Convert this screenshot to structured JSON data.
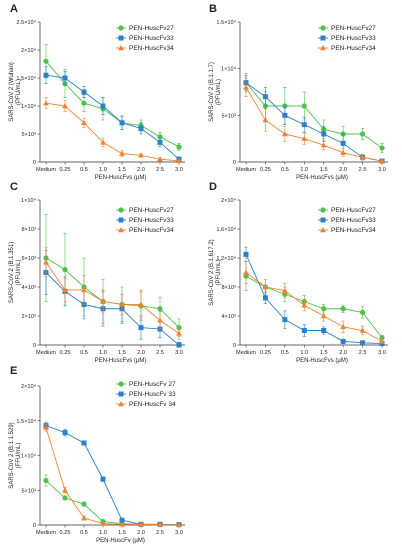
{
  "chart_data": [
    {
      "type": "line",
      "panel": "A",
      "x_categories": [
        "Medium",
        "0.25",
        "0.5",
        "1.0",
        "1.5",
        "2.0",
        "2.5",
        "3.0"
      ],
      "xlabel": "PEN-HuscFvs (µM)",
      "ylabel": "SARS-CoV 2 (Wuhan)",
      "ylabel_unit": "(PFU/mL)",
      "yscale": "linear",
      "ylim": [
        0,
        25000
      ],
      "y_ticks": [
        {
          "value": 0,
          "label": "0"
        },
        {
          "value": 5000,
          "label": "5×10³"
        },
        {
          "value": 10000,
          "label": "1×10⁴"
        },
        {
          "value": 15000,
          "label": "1.5×10⁴"
        },
        {
          "value": 20000,
          "label": "2×10⁴"
        },
        {
          "value": 25000,
          "label": "2.5×10⁴"
        }
      ],
      "legend_position": "top-right",
      "series": [
        {
          "name": "PEN-HuscFv27",
          "color": "#4cc24c",
          "marker": "circle",
          "values": [
            18000,
            14000,
            10500,
            9500,
            7000,
            6500,
            4500,
            2700
          ],
          "errors": [
            3000,
            2500,
            1500,
            2000,
            1200,
            1000,
            800,
            600
          ]
        },
        {
          "name": "PEN-HuscFv33",
          "color": "#2b80c7",
          "marker": "square",
          "values": [
            15500,
            15000,
            12500,
            10000,
            7000,
            6000,
            3500,
            500
          ],
          "errors": [
            1500,
            1200,
            1000,
            1500,
            1200,
            1000,
            800,
            400
          ]
        },
        {
          "name": "PEN-HuscFv34",
          "color": "#f08232",
          "marker": "triangle",
          "values": [
            10500,
            10000,
            7000,
            3500,
            1500,
            1200,
            500,
            200
          ],
          "errors": [
            1000,
            1000,
            800,
            700,
            500,
            300,
            200,
            100
          ]
        }
      ]
    },
    {
      "type": "line",
      "panel": "B",
      "x_categories": [
        "Medium",
        "0.25",
        "0.5",
        "1.0",
        "1.5",
        "2.0",
        "2.5",
        "3.0"
      ],
      "xlabel": "PEN-HuscFvs (µM)",
      "ylabel": "SARS-CoV 2  (B.1.1.7)",
      "ylabel_unit": "(PFU/mL)",
      "yscale": "linear",
      "ylim": [
        0,
        15000
      ],
      "y_ticks": [
        {
          "value": 0,
          "label": "0"
        },
        {
          "value": 5000,
          "label": "5×10³"
        },
        {
          "value": 10000,
          "label": "1×10⁴"
        },
        {
          "value": 15000,
          "label": "1.5×10⁴"
        }
      ],
      "legend_position": "top-right",
      "series": [
        {
          "name": "PEN-HuscFv27",
          "color": "#4cc24c",
          "marker": "circle",
          "values": [
            8500,
            6000,
            6000,
            6000,
            3500,
            3000,
            3000,
            1500
          ],
          "errors": [
            1000,
            1500,
            2000,
            1500,
            1000,
            800,
            600,
            500
          ]
        },
        {
          "name": "PEN-HuscFv33",
          "color": "#2b80c7",
          "marker": "square",
          "values": [
            8500,
            7000,
            5000,
            4000,
            3000,
            2000,
            500,
            100
          ],
          "errors": [
            800,
            1000,
            1000,
            800,
            800,
            1000,
            300,
            100
          ]
        },
        {
          "name": "PEN-HuscFv34",
          "color": "#f08232",
          "marker": "triangle",
          "values": [
            8000,
            4500,
            3000,
            2500,
            1800,
            1000,
            500,
            100
          ],
          "errors": [
            1000,
            1200,
            800,
            600,
            500,
            400,
            300,
            100
          ]
        }
      ]
    },
    {
      "type": "line",
      "panel": "C",
      "x_categories": [
        "Medium",
        "0.25",
        "0.5",
        "1.0",
        "1.5",
        "2.0",
        "2.5",
        "3.0"
      ],
      "xlabel": "PEN-HuscFvs (µM)",
      "ylabel": "SARS-CoV 2  (B.1.351)",
      "ylabel_unit": "(PFU/mL)",
      "yscale": "linear",
      "ylim": [
        0,
        10000
      ],
      "y_ticks": [
        {
          "value": 0,
          "label": "0"
        },
        {
          "value": 2000,
          "label": "2×10³"
        },
        {
          "value": 4000,
          "label": "4×10³"
        },
        {
          "value": 6000,
          "label": "6×10³"
        },
        {
          "value": 8000,
          "label": "8×10³"
        },
        {
          "value": 10000,
          "label": "1×10⁴"
        }
      ],
      "legend_position": "top-right",
      "series": [
        {
          "name": "PEN-HuscFv27",
          "color": "#4cc24c",
          "marker": "circle",
          "values": [
            6000,
            5200,
            4000,
            3000,
            2800,
            2700,
            2500,
            1200
          ],
          "errors": [
            3000,
            2500,
            2000,
            1500,
            1200,
            1000,
            800,
            600
          ]
        },
        {
          "name": "PEN-HuscFv33",
          "color": "#2b80c7",
          "marker": "square",
          "values": [
            5000,
            3700,
            2800,
            2500,
            2500,
            1200,
            1100,
            0
          ],
          "errors": [
            1500,
            1000,
            1000,
            1200,
            1000,
            800,
            600,
            200
          ]
        },
        {
          "name": "PEN-HuscFv34",
          "color": "#f08232",
          "marker": "triangle",
          "values": [
            5700,
            3800,
            3800,
            3000,
            2800,
            2800,
            1700,
            800
          ],
          "errors": [
            1000,
            800,
            1000,
            800,
            700,
            1000,
            600,
            400
          ]
        }
      ]
    },
    {
      "type": "line",
      "panel": "D",
      "x_categories": [
        "Medium",
        "0.25",
        "0.5",
        "1.0",
        "1.5",
        "2.0",
        "2.5",
        "3.0"
      ],
      "xlabel": "PEN-HuscFvs (µM)",
      "ylabel": "SARS-CoV 2  (B.1.617.2)",
      "ylabel_unit": "(PFU/mL)",
      "yscale": "linear",
      "ylim": [
        0,
        20000
      ],
      "y_ticks": [
        {
          "value": 0,
          "label": "0"
        },
        {
          "value": 4000,
          "label": "4×10³"
        },
        {
          "value": 8000,
          "label": "8×10³"
        },
        {
          "value": 12000,
          "label": "1.2×10⁴"
        },
        {
          "value": 16000,
          "label": "1.6×10⁴"
        },
        {
          "value": 20000,
          "label": "2×10⁴"
        }
      ],
      "legend_position": "top-right",
      "series": [
        {
          "name": "PEN-HuscFv27",
          "color": "#4cc24c",
          "marker": "circle",
          "values": [
            9500,
            8000,
            7000,
            6000,
            5000,
            5000,
            4500,
            1000
          ],
          "errors": [
            2000,
            1000,
            1000,
            800,
            600,
            500,
            800,
            300
          ]
        },
        {
          "name": "PEN-HuscFv33",
          "color": "#2b80c7",
          "marker": "square",
          "values": [
            12500,
            6500,
            3500,
            2000,
            2000,
            500,
            300,
            200
          ],
          "errors": [
            1000,
            800,
            1200,
            800,
            500,
            300,
            200,
            100
          ]
        },
        {
          "name": "PEN-HuscFv34",
          "color": "#f08232",
          "marker": "triangle",
          "values": [
            10000,
            8000,
            7500,
            5500,
            4000,
            2500,
            2000,
            500
          ],
          "errors": [
            1500,
            1000,
            1000,
            800,
            700,
            800,
            600,
            300
          ]
        }
      ]
    },
    {
      "type": "line",
      "panel": "E",
      "x_categories": [
        "Medium",
        "0.25",
        "0.5",
        "1.0",
        "1.5",
        "2.0",
        "2.5",
        "3.0"
      ],
      "xlabel": "PEN-HuscFv (µM)",
      "ylabel": "SARS-CoV 2  (B.1.1.529)",
      "ylabel_unit": "(FFU/mL)",
      "yscale": "linear",
      "ylim": [
        0,
        20000
      ],
      "y_ticks": [
        {
          "value": 0,
          "label": "0"
        },
        {
          "value": 5000,
          "label": "5×10³"
        },
        {
          "value": 10000,
          "label": "1×10⁴"
        },
        {
          "value": 15000,
          "label": "1.5×10⁴"
        },
        {
          "value": 20000,
          "label": "2×10⁴"
        }
      ],
      "legend_position": "top-right",
      "series": [
        {
          "name": "PEN-HuscFv 27",
          "color": "#4cc24c",
          "marker": "circle",
          "values": [
            6400,
            3900,
            3000,
            500,
            200,
            100,
            100,
            50
          ],
          "errors": [
            800,
            300,
            300,
            200,
            100,
            50,
            50,
            30
          ]
        },
        {
          "name": "PEN-HuscFv 33",
          "color": "#2b80c7",
          "marker": "square",
          "values": [
            14300,
            13300,
            11800,
            6600,
            700,
            100,
            100,
            50
          ],
          "errors": [
            500,
            500,
            300,
            300,
            200,
            50,
            50,
            30
          ]
        },
        {
          "name": "PEN-HuscFv 34",
          "color": "#f08232",
          "marker": "triangle",
          "values": [
            14000,
            5000,
            1000,
            200,
            100,
            100,
            50,
            50
          ],
          "errors": [
            500,
            400,
            300,
            100,
            50,
            50,
            30,
            30
          ]
        }
      ]
    }
  ]
}
